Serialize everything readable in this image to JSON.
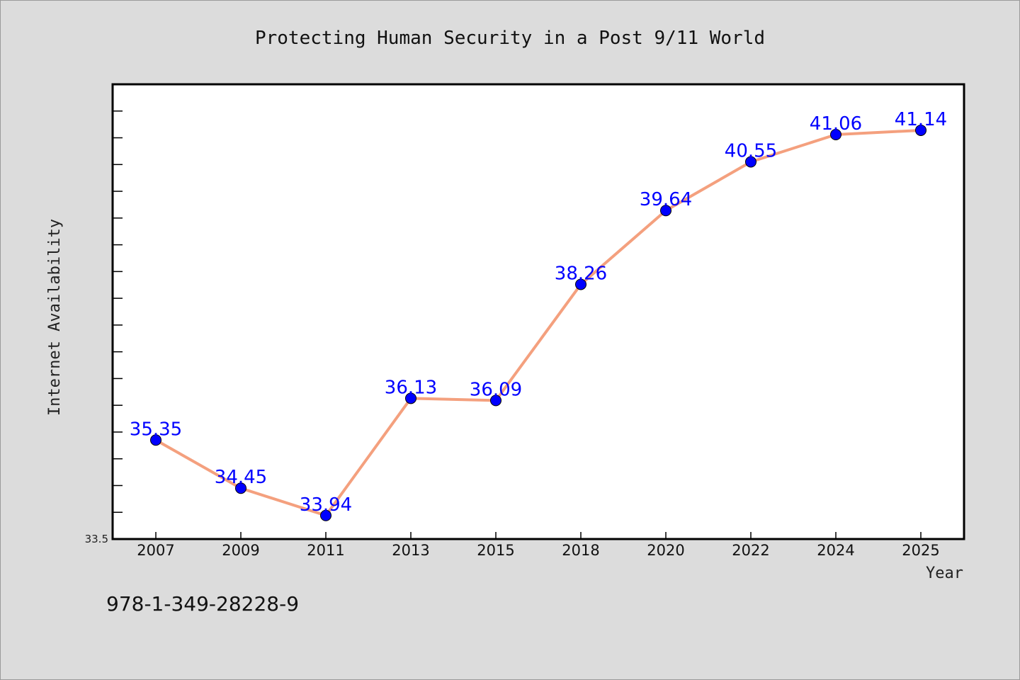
{
  "chart_data": {
    "type": "line",
    "title": "Protecting Human Security in a Post 9/11 World",
    "xlabel": "Year",
    "ylabel": "Internet Availability",
    "categories": [
      "2007",
      "2009",
      "2011",
      "2013",
      "2015",
      "2018",
      "2020",
      "2022",
      "2024",
      "2025"
    ],
    "series": [
      {
        "values": [
          35.35,
          34.45,
          33.94,
          36.13,
          36.09,
          38.26,
          39.64,
          40.55,
          41.06,
          41.14
        ]
      }
    ],
    "ylim": [
      33.5,
      42.0
    ],
    "y_min_label": "33.5",
    "grid": false,
    "line_color": "#f4a07e",
    "marker_color": "#0000ff",
    "label_color": "#0000ff"
  },
  "footer": {
    "isbn": "978-1-349-28228-9"
  }
}
